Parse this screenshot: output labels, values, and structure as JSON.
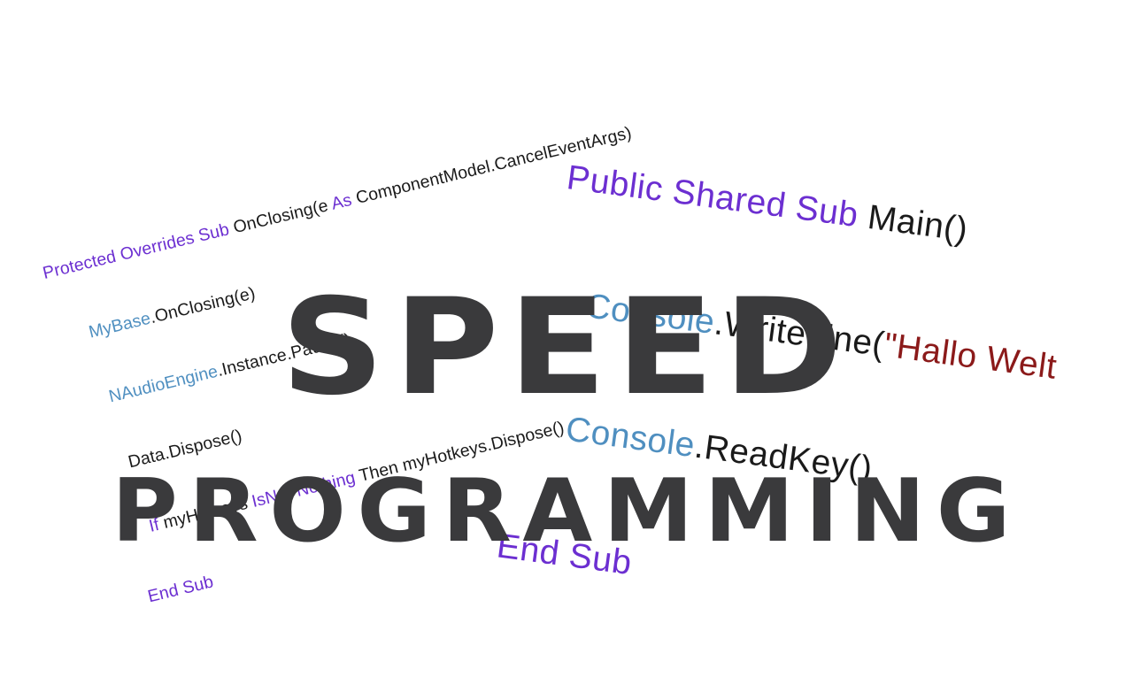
{
  "colors": {
    "keyword": "#6c2fd1",
    "class": "#4f8fc0",
    "string": "#8b1a1a",
    "title": "#3a3a3c",
    "background": "#ffffff"
  },
  "snippet_left": {
    "line1": {
      "kw": "Protected Overrides Sub",
      "plain1": " OnClosing(e ",
      "kw2": "As",
      "plain2": " ComponentModel.CancelEventArgs)"
    },
    "line2": {
      "cls": "MyBase",
      "plain": ".OnClosing(e)"
    },
    "line3": {
      "cls": "NAudioEngine",
      "plain": ".Instance.Pause()"
    },
    "line4": {
      "plain": "Data.Dispose()"
    },
    "line5": {
      "kw": "If",
      "plain1": " myHotkeys ",
      "kw2": "IsNot Nothing",
      "plain2": " Then myHotkeys.Dispose()"
    },
    "line6": {
      "kw": "End Sub"
    }
  },
  "snippet_right": {
    "line1": {
      "kw": "Public Shared Sub",
      "plain": " Main()"
    },
    "line2": {
      "cls": "Console",
      "plain": ".WriteLine(",
      "str": "\"Hallo Welt"
    },
    "line3": {
      "cls": "Console",
      "plain": ".ReadKey()"
    },
    "line4": {
      "kw": "End Sub"
    }
  },
  "title": {
    "main": "SPEED",
    "sub": "PROGRAMMING"
  }
}
